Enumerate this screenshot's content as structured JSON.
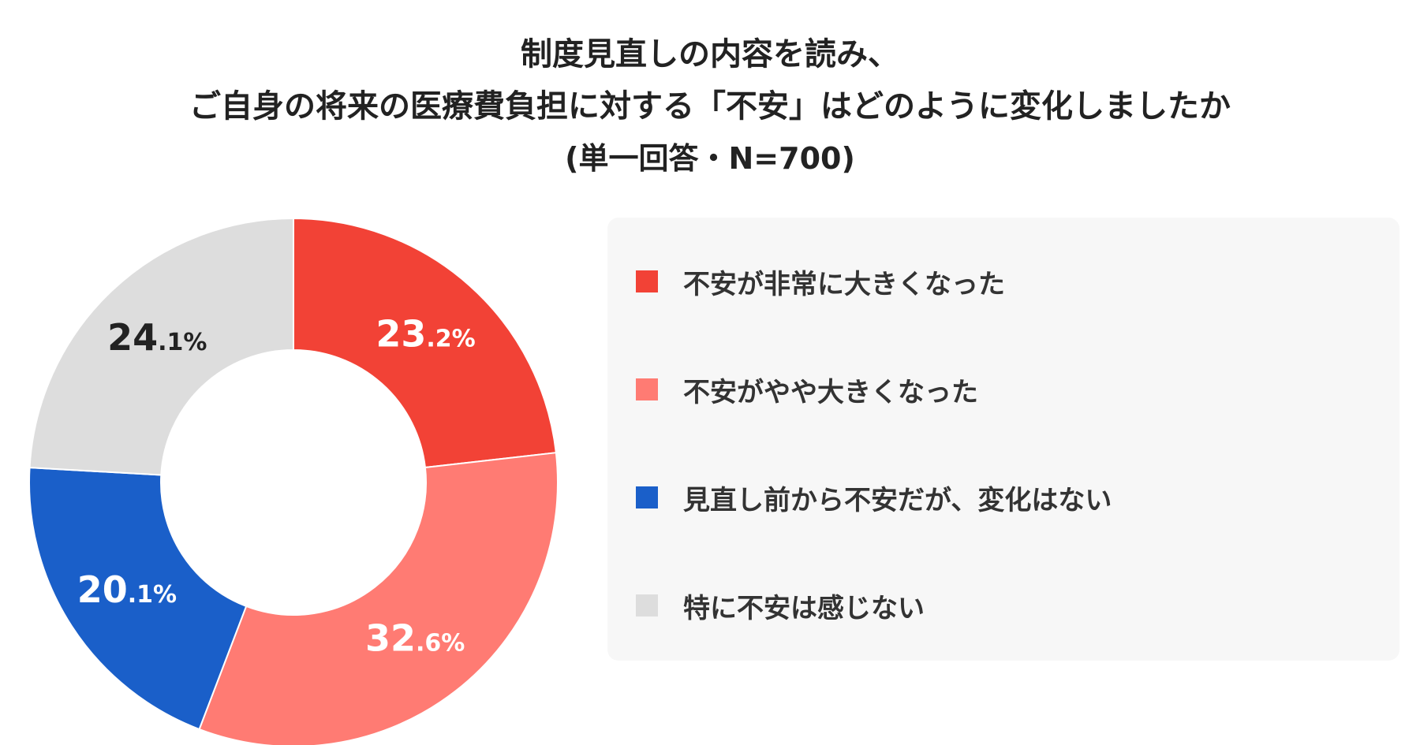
{
  "chart_data": {
    "type": "pie",
    "title_lines": [
      "制度見直しの内容を読み、",
      "ご自身の将来の医療費負担に対する「不安」はどのように変化しましたか"
    ],
    "subtitle": "(単一回答・N=700)",
    "legend_position": "right",
    "categories": [
      "不安が非常に大きくなった",
      "不安がやや大きくなった",
      "見直し前から不安だが、変化はない",
      "特に不安は感じない"
    ],
    "values": [
      23.2,
      32.6,
      20.1,
      24.1
    ],
    "value_labels": [
      {
        "main": "23",
        "decimal": ".2%"
      },
      {
        "main": "32",
        "decimal": ".6%"
      },
      {
        "main": "20",
        "decimal": ".1%"
      },
      {
        "main": "24",
        "decimal": ".1%"
      }
    ],
    "colors": [
      "#f24236",
      "#ff7b73",
      "#1a5fc9",
      "#dddddd"
    ],
    "label_colors": [
      "#ffffff",
      "#ffffff",
      "#ffffff",
      "#222222"
    ]
  }
}
